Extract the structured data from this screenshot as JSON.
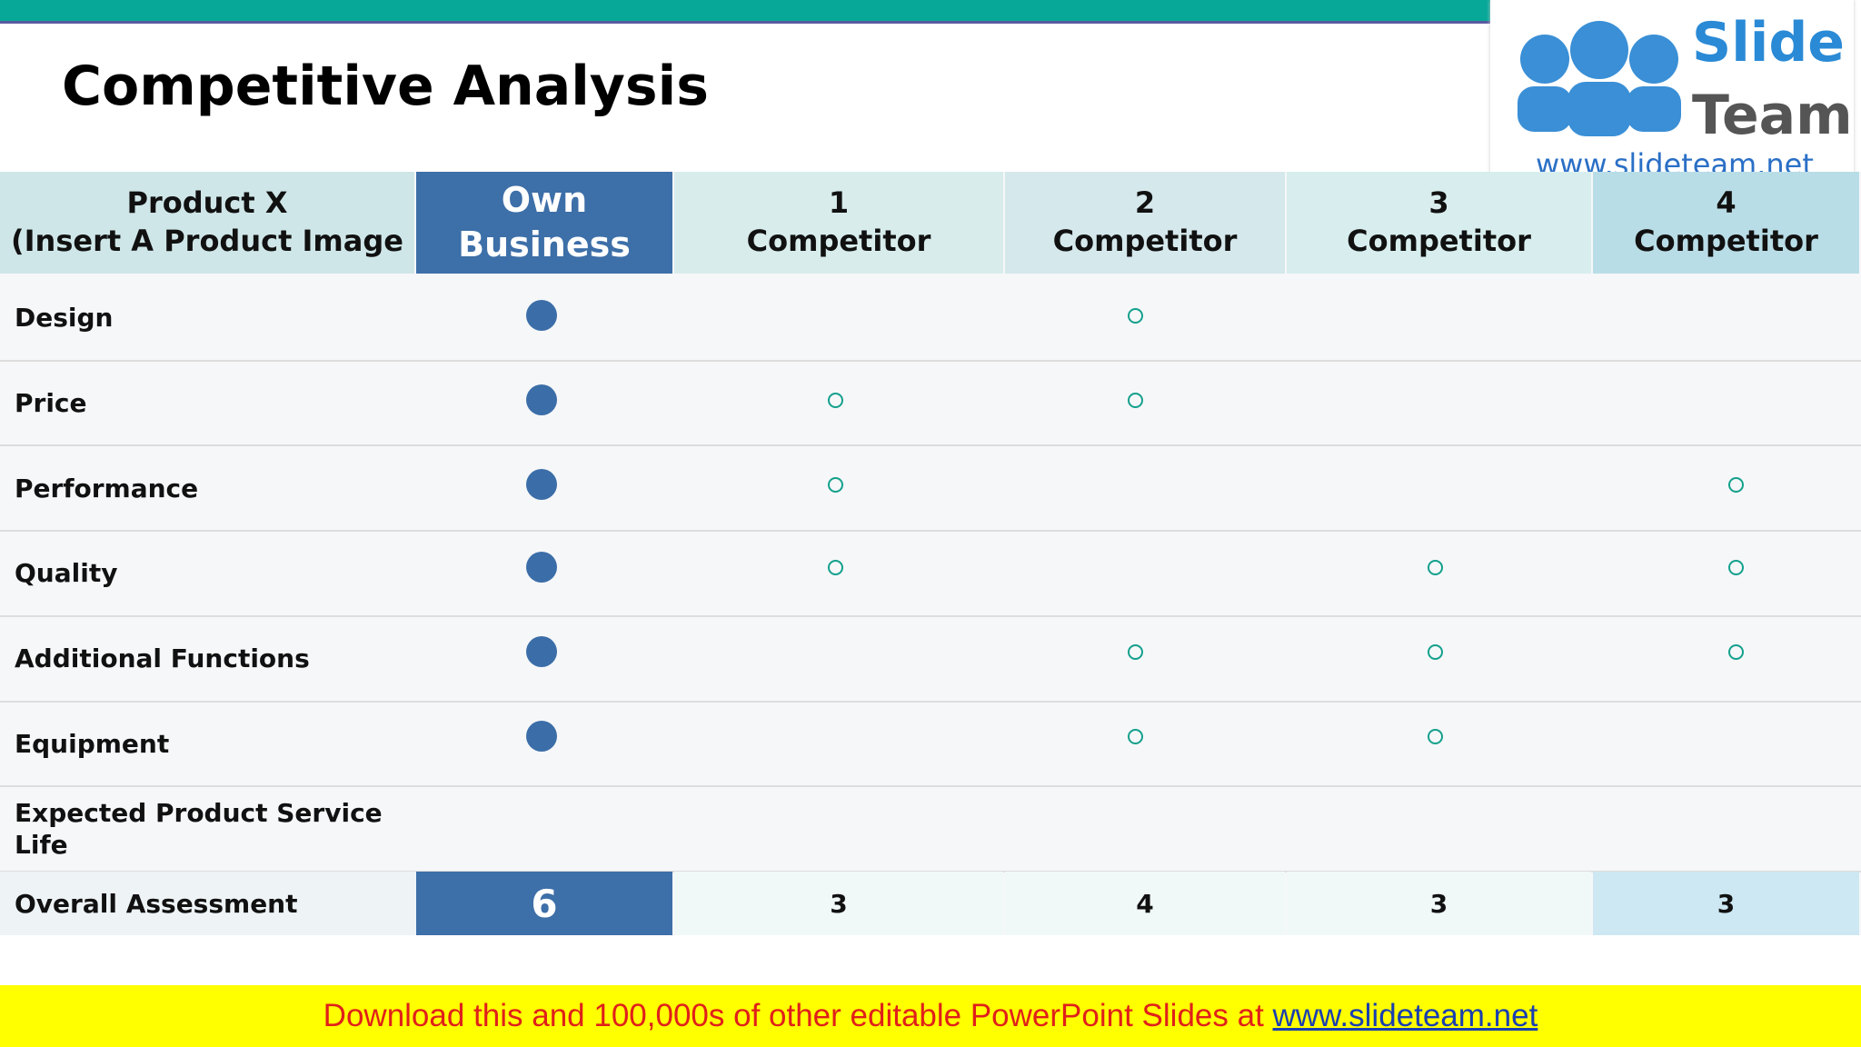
{
  "header": {
    "title": "Competitive Analysis",
    "logo": {
      "word1": "Slide",
      "word2": "Team",
      "url": "www.slideteam.net"
    }
  },
  "table": {
    "columns": [
      "Product X\n(Insert A Product Image",
      "Own\nBusiness",
      "1\nCompetitor",
      "2\nCompetitor",
      "3\nCompetitor",
      "4\nCompetitor"
    ],
    "rows": [
      "Design",
      "Price",
      "Performance",
      "Quality",
      "Additional Functions",
      "Equipment",
      "Expected Product Service\nLife"
    ],
    "total": {
      "label": "Overall Assessment",
      "values": [
        "6",
        "3",
        "4",
        "3",
        "3"
      ]
    }
  },
  "footer": {
    "text": "Download this and 100,000s of other editable PowerPoint Slides at ",
    "link": "www.slideteam.net"
  }
}
